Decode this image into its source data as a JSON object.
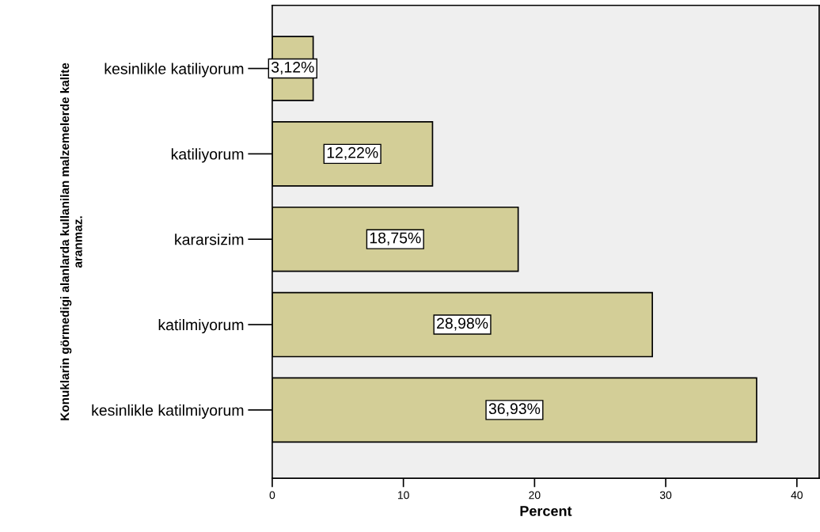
{
  "chart_data": {
    "type": "bar",
    "orientation": "horizontal",
    "ylabel": "Konuklarin görmedigi alanlarda kullanilan malzemelerde kalite\naranmaz.",
    "xlabel": "Percent",
    "categories": [
      "kesinlikle katiliyorum",
      "katiliyorum",
      "kararsizim",
      "katilmiyorum",
      "kesinlikle katilmiyorum"
    ],
    "values": [
      3.12,
      12.22,
      18.75,
      28.98,
      36.93
    ],
    "value_labels": [
      "3,12%",
      "12,22%",
      "18,75%",
      "28,98%",
      "36,93%"
    ],
    "color": "#d3ce97",
    "xlim": [
      0,
      41.7
    ],
    "xticks": [
      0,
      10,
      20,
      30,
      40
    ],
    "grid": false
  }
}
